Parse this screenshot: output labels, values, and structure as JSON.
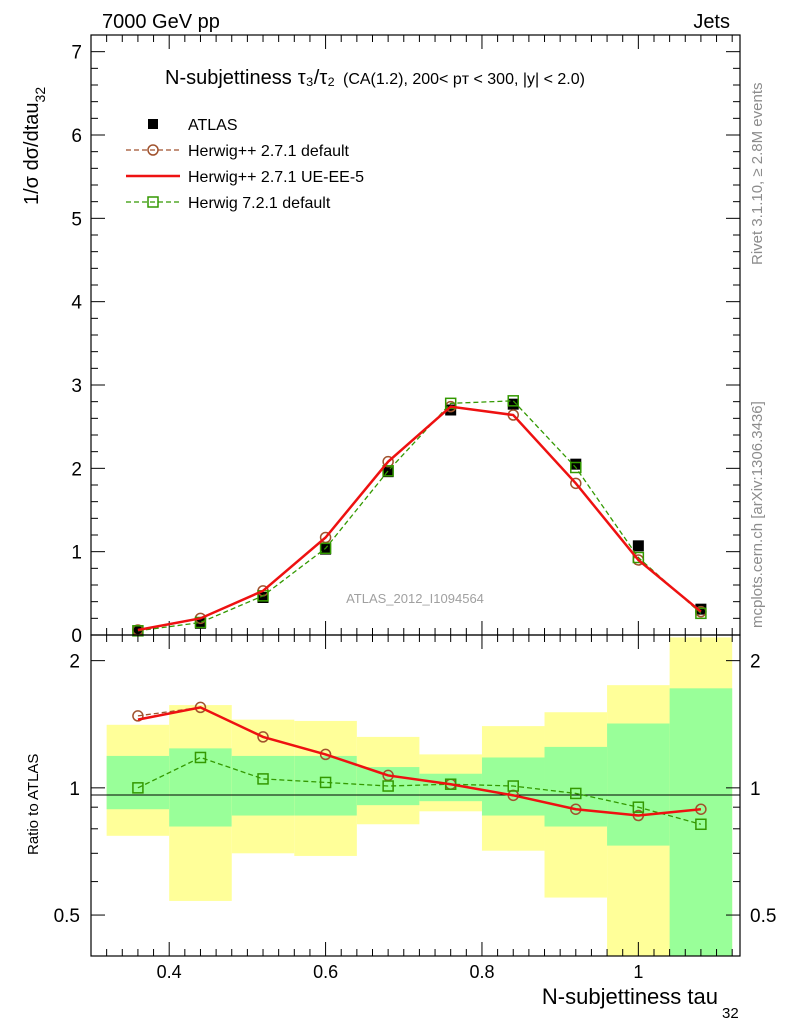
{
  "header": {
    "left": "7000 GeV pp",
    "right": "Jets"
  },
  "side_labels": {
    "rivet": "Rivet 3.1.10, ≥ 2.8M events",
    "mcplots": "mcplots.cern.ch [arXiv:1306.3436]"
  },
  "chart_data": {
    "type": "line",
    "title_main": "N-subjettiness",
    "title_ratio": "τ₃/τ₂",
    "title_detail": "(CA(1.2), 200< pᴛ < 300, |y| < 2.0)",
    "watermark": "ATLAS_2012_I1094564",
    "xlabel": "N-subjettiness tau",
    "xlabel_sub": "32",
    "ylabel": "1/σ dσ/dtau",
    "ylabel_sub": "32",
    "ratio_ylabel": "Ratio to ATLAS",
    "xlim": [
      0.3,
      1.13
    ],
    "ylim": [
      0,
      7.2
    ],
    "ratio_ylim": [
      0.4,
      2.3
    ],
    "x_ticks": [
      "0.4",
      "0.6",
      "0.8",
      "1"
    ],
    "y_ticks": [
      "0",
      "1",
      "2",
      "3",
      "4",
      "5",
      "6",
      "7"
    ],
    "ratio_ticks": [
      "0.5",
      "1",
      "2"
    ],
    "bin_edges": [
      0.32,
      0.4,
      0.48,
      0.56,
      0.64,
      0.72,
      0.8,
      0.88,
      0.96,
      1.04,
      1.12
    ],
    "x": [
      0.36,
      0.44,
      0.52,
      0.6,
      0.68,
      0.76,
      0.84,
      0.92,
      1.0,
      1.08
    ],
    "legend": [
      {
        "name": "ATLAS",
        "style": "data"
      },
      {
        "name": "Herwig++ 2.7.1 default",
        "style": "circle-dashed"
      },
      {
        "name": "Herwig++ 2.7.1 UE-EE-5",
        "style": "solid"
      },
      {
        "name": "Herwig 7.2.1 default",
        "style": "square-dashed"
      }
    ],
    "data": {
      "name": "ATLAS",
      "values": [
        0.05,
        0.14,
        0.45,
        1.03,
        1.96,
        2.7,
        2.77,
        2.05,
        1.07,
        0.31
      ],
      "band_inner": [
        [
          0.89,
          1.19
        ],
        [
          0.81,
          1.24
        ],
        [
          0.86,
          1.19
        ],
        [
          0.86,
          1.19
        ],
        [
          0.91,
          1.12
        ],
        [
          0.93,
          1.08
        ],
        [
          0.86,
          1.18
        ],
        [
          0.81,
          1.25
        ],
        [
          0.73,
          1.42
        ],
        [
          0.37,
          1.72
        ]
      ],
      "band_outer": [
        [
          0.77,
          1.41
        ],
        [
          0.54,
          1.57
        ],
        [
          0.7,
          1.45
        ],
        [
          0.69,
          1.44
        ],
        [
          0.82,
          1.32
        ],
        [
          0.88,
          1.2
        ],
        [
          0.71,
          1.4
        ],
        [
          0.55,
          1.51
        ],
        [
          0.3,
          1.75
        ],
        [
          0.3,
          2.27
        ]
      ]
    },
    "series": [
      {
        "name": "Herwig++ 2.7.1 default",
        "color": "#a0522d",
        "marker": "circle",
        "dash": true,
        "values": [
          0.06,
          0.2,
          0.53,
          1.17,
          2.08,
          2.74,
          2.64,
          1.82,
          0.9,
          0.28
        ],
        "ratio": [
          1.48,
          1.55,
          1.32,
          1.2,
          1.07,
          1.02,
          0.96,
          0.89,
          0.86,
          0.89
        ]
      },
      {
        "name": "Herwig++ 2.7.1 UE-EE-5",
        "color": "#ee1111",
        "marker": "none",
        "dash": false,
        "values": [
          0.06,
          0.2,
          0.53,
          1.17,
          2.08,
          2.74,
          2.64,
          1.82,
          0.9,
          0.28
        ],
        "ratio": [
          1.45,
          1.55,
          1.32,
          1.2,
          1.07,
          1.02,
          0.96,
          0.89,
          0.86,
          0.89
        ]
      },
      {
        "name": "Herwig 7.2.1 default",
        "color": "#339900",
        "marker": "square",
        "dash": true,
        "values": [
          0.05,
          0.15,
          0.47,
          1.04,
          1.97,
          2.78,
          2.81,
          2.01,
          0.93,
          0.26
        ],
        "ratio": [
          1.0,
          1.18,
          1.05,
          1.03,
          1.01,
          1.02,
          1.01,
          0.97,
          0.9,
          0.82
        ]
      }
    ]
  }
}
